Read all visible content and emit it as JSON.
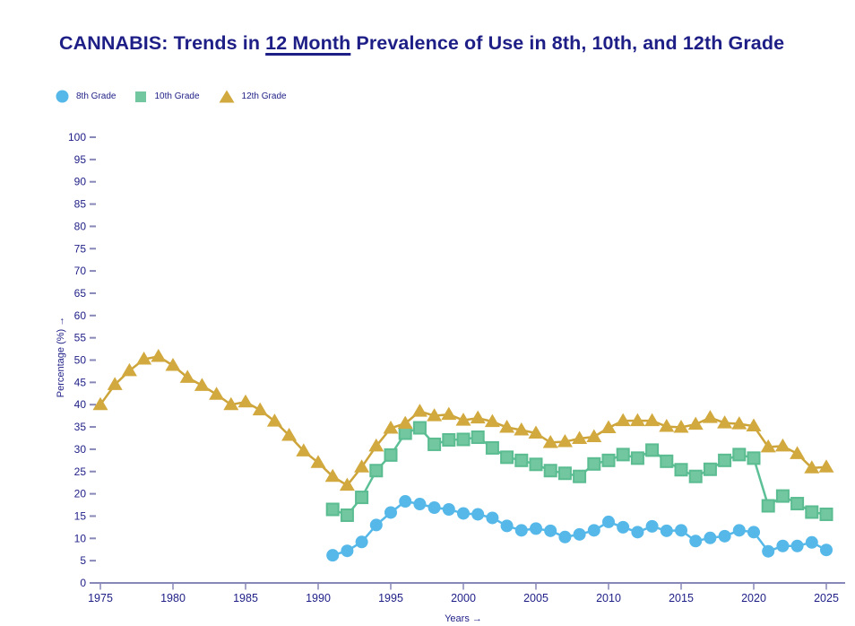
{
  "title": {
    "prefix": "CANNABIS: Trends in ",
    "underlined": "12 Month",
    "suffix": " Prevalence of Use in 8th, 10th, and 12th Grade"
  },
  "colors": {
    "title_text": "#1e1e87",
    "tick_text": "#1e1e87",
    "axis_line": "#8787b8",
    "background": "#ffffff",
    "grade8": "#55b8e8",
    "grade10": "#72c7a0",
    "grade10_border": "#5abc90",
    "grade12": "#d2a93e"
  },
  "legend": [
    {
      "label": "8th Grade",
      "marker": "circle",
      "color": "#55b8e8"
    },
    {
      "label": "10th Grade",
      "marker": "square",
      "color": "#72c7a0"
    },
    {
      "label": "12th Grade",
      "marker": "triangle",
      "color": "#d2a93e"
    }
  ],
  "chart_data": {
    "type": "line",
    "title": "CANNABIS: Trends in 12 Month Prevalence of Use in 8th, 10th, and 12th Grade",
    "xlabel": "Years →",
    "ylabel": "Percentage (%) →",
    "xlim": [
      1975,
      2025
    ],
    "ylim": [
      0,
      100
    ],
    "grid": false,
    "legend_position": "top-left",
    "x_ticks": [
      1975,
      1980,
      1985,
      1990,
      1995,
      2000,
      2005,
      2010,
      2015,
      2020,
      2025
    ],
    "y_ticks": [
      0,
      5,
      10,
      15,
      20,
      25,
      30,
      35,
      40,
      45,
      50,
      55,
      60,
      65,
      70,
      75,
      80,
      85,
      90,
      95,
      100
    ],
    "series": [
      {
        "name": "8th Grade",
        "marker": "circle",
        "color": "#55b8e8",
        "border": "#55b8e8",
        "line_color": "#55b8e8",
        "x": [
          1991,
          1992,
          1993,
          1994,
          1995,
          1996,
          1997,
          1998,
          1999,
          2000,
          2001,
          2002,
          2003,
          2004,
          2005,
          2006,
          2007,
          2008,
          2009,
          2010,
          2011,
          2012,
          2013,
          2014,
          2015,
          2016,
          2017,
          2018,
          2019,
          2020,
          2021,
          2022,
          2023,
          2024,
          2025
        ],
        "values": [
          6.2,
          7.2,
          9.2,
          13.0,
          15.8,
          18.3,
          17.7,
          16.9,
          16.5,
          15.6,
          15.4,
          14.6,
          12.8,
          11.8,
          12.2,
          11.7,
          10.3,
          10.9,
          11.8,
          13.7,
          12.5,
          11.4,
          12.7,
          11.7,
          11.8,
          9.4,
          10.1,
          10.5,
          11.8,
          11.4,
          7.1,
          8.3,
          8.3,
          9.1,
          7.4
        ]
      },
      {
        "name": "10th Grade",
        "marker": "square",
        "color": "#72c7a0",
        "border": "#5abc90",
        "line_color": "#5cc096",
        "x": [
          1991,
          1992,
          1993,
          1994,
          1995,
          1996,
          1997,
          1998,
          1999,
          2000,
          2001,
          2002,
          2003,
          2004,
          2005,
          2006,
          2007,
          2008,
          2009,
          2010,
          2011,
          2012,
          2013,
          2014,
          2015,
          2016,
          2017,
          2018,
          2019,
          2020,
          2021,
          2022,
          2023,
          2024,
          2025
        ],
        "values": [
          16.5,
          15.2,
          19.2,
          25.2,
          28.7,
          33.6,
          34.8,
          31.1,
          32.1,
          32.2,
          32.7,
          30.3,
          28.2,
          27.5,
          26.6,
          25.2,
          24.6,
          23.9,
          26.7,
          27.5,
          28.8,
          28.0,
          29.8,
          27.3,
          25.4,
          23.9,
          25.5,
          27.5,
          28.8,
          28.0,
          17.3,
          19.5,
          17.8,
          15.9,
          15.4
        ]
      },
      {
        "name": "12th Grade",
        "marker": "triangle",
        "color": "#d2a93e",
        "border": "#d2a93e",
        "line_color": "#cda439",
        "x": [
          1975,
          1976,
          1977,
          1978,
          1979,
          1980,
          1981,
          1982,
          1983,
          1984,
          1985,
          1986,
          1987,
          1988,
          1989,
          1990,
          1991,
          1992,
          1993,
          1994,
          1995,
          1996,
          1997,
          1998,
          1999,
          2000,
          2001,
          2002,
          2003,
          2004,
          2005,
          2006,
          2007,
          2008,
          2009,
          2010,
          2011,
          2012,
          2013,
          2014,
          2015,
          2016,
          2017,
          2018,
          2019,
          2020,
          2021,
          2022,
          2023,
          2024,
          2025
        ],
        "values": [
          40.0,
          44.5,
          47.6,
          50.2,
          50.8,
          48.8,
          46.1,
          44.3,
          42.3,
          40.0,
          40.6,
          38.8,
          36.3,
          33.1,
          29.6,
          27.0,
          23.9,
          21.9,
          26.0,
          30.7,
          34.7,
          35.8,
          38.5,
          37.5,
          37.8,
          36.5,
          37.0,
          36.2,
          34.9,
          34.3,
          33.6,
          31.5,
          31.7,
          32.4,
          32.8,
          34.8,
          36.4,
          36.4,
          36.4,
          35.1,
          34.9,
          35.6,
          37.1,
          35.9,
          35.7,
          35.2,
          30.5,
          30.7,
          29.0,
          25.8,
          26.0
        ]
      }
    ]
  }
}
